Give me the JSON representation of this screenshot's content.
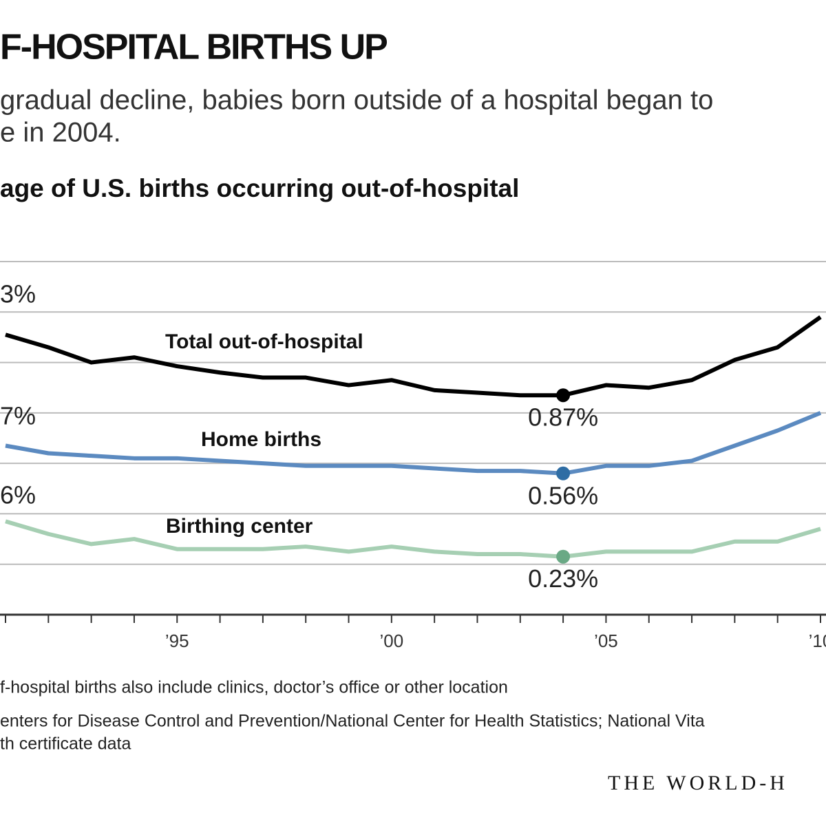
{
  "chart_data": {
    "type": "line",
    "title": "F-HOSPITAL BIRTHS UP",
    "subtitle": [
      "gradual decline, babies born outside of a hospital began to",
      "e in 2004."
    ],
    "y_label": "age of U.S. births occurring out-of-hospital",
    "x": [
      1991,
      1992,
      1993,
      1994,
      1995,
      1996,
      1997,
      1998,
      1999,
      2000,
      2001,
      2002,
      2003,
      2004,
      2005,
      2006,
      2007,
      2008,
      2009,
      2010
    ],
    "xlim": [
      1991,
      2010
    ],
    "xticks": [
      {
        "value": 1995,
        "label": "’95"
      },
      {
        "value": 2000,
        "label": "’00"
      },
      {
        "value": 2005,
        "label": "’05"
      },
      {
        "value": 2010,
        "label": "’10"
      }
    ],
    "ylim": [
      0,
      1.4
    ],
    "yticks": [
      0.2,
      0.4,
      0.6,
      0.8,
      1.0,
      1.2,
      1.4
    ],
    "grid": true,
    "series": [
      {
        "name": "Total out-of-hospital",
        "color": "#000000",
        "dot_color": "#000000",
        "values": [
          1.11,
          1.06,
          1.0,
          1.02,
          0.985,
          0.96,
          0.94,
          0.94,
          0.91,
          0.93,
          0.89,
          0.88,
          0.87,
          0.87,
          0.91,
          0.9,
          0.93,
          1.01,
          1.06,
          1.18
        ],
        "value_labels": [
          null,
          null,
          null,
          null,
          null,
          null,
          null,
          null,
          null,
          null,
          null,
          null,
          null,
          "0.87%",
          null,
          null,
          null,
          null,
          null,
          null
        ],
        "start_label": "3%"
      },
      {
        "name": "Home births",
        "color": "#5b8ac0",
        "dot_color": "#2e6da4",
        "values": [
          0.67,
          0.64,
          0.63,
          0.62,
          0.62,
          0.61,
          0.6,
          0.59,
          0.59,
          0.59,
          0.58,
          0.57,
          0.57,
          0.56,
          0.59,
          0.59,
          0.61,
          0.67,
          0.73,
          0.8
        ],
        "value_labels": [
          null,
          null,
          null,
          null,
          null,
          null,
          null,
          null,
          null,
          null,
          null,
          null,
          null,
          "0.56%",
          null,
          null,
          null,
          null,
          null,
          null
        ],
        "start_label": "7%"
      },
      {
        "name": "Birthing center",
        "color": "#a6cfb3",
        "dot_color": "#6aa985",
        "values": [
          0.37,
          0.32,
          0.28,
          0.3,
          0.26,
          0.26,
          0.26,
          0.27,
          0.25,
          0.27,
          0.25,
          0.24,
          0.24,
          0.23,
          0.25,
          0.25,
          0.25,
          0.29,
          0.29,
          0.34
        ],
        "value_labels": [
          null,
          null,
          null,
          null,
          null,
          null,
          null,
          null,
          null,
          null,
          null,
          null,
          null,
          "0.23%",
          null,
          null,
          null,
          null,
          null,
          null
        ],
        "start_label": "6%"
      }
    ],
    "note": "f-hospital births also include clinics, doctor’s office or other location",
    "source": [
      "enters for Disease Control and Prevention/National Center for Health Statistics; National Vita",
      "th certificate data"
    ],
    "credit": "THE WORLD-H"
  }
}
